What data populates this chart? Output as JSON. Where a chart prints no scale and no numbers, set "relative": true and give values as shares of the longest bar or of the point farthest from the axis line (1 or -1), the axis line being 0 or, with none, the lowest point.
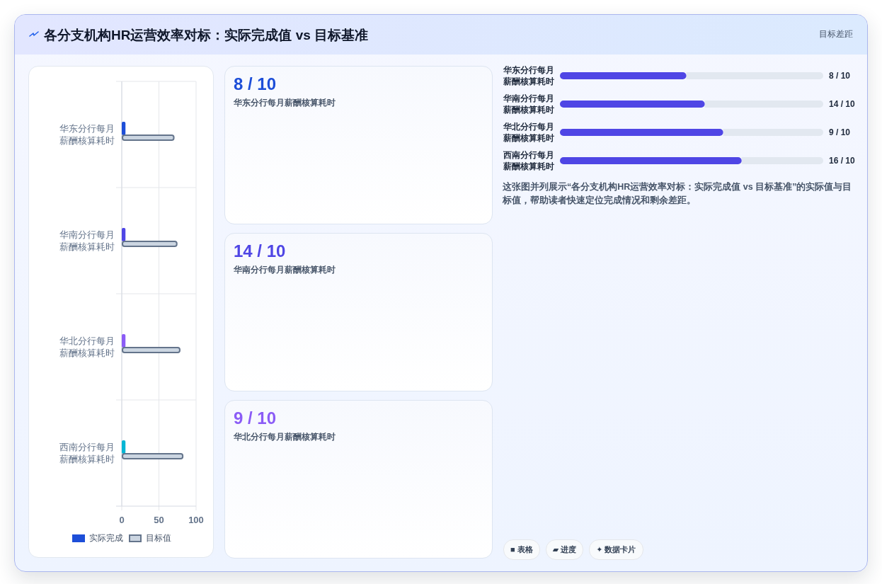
{
  "chart_data": [
    {
      "type": "bar",
      "orientation": "horizontal",
      "title": "各分支机构HR运营效率对标：实际完成值 vs 目标基准",
      "annotations": [
        "目标差距"
      ],
      "categories": [
        "华东分行每月薪酬核算耗时",
        "华南分行每月薪酬核算耗时",
        "华北分行每月薪酬核算耗时",
        "西南分行每月薪酬核算耗时"
      ],
      "series": [
        {
          "name": "实际完成",
          "color": "#1d4ed8",
          "colors": [
            "#1d4ed8",
            "#4f46e5",
            "#8b5cf6",
            "#06b6d4"
          ],
          "values": [
            5,
            5,
            5,
            5
          ]
        },
        {
          "name": "目标值",
          "color": "#cbd5e1",
          "values": [
            71,
            75,
            79,
            83
          ]
        }
      ],
      "xlim": [
        0,
        100
      ],
      "xticks": [
        0,
        50,
        100
      ],
      "grid": true,
      "legend": "bottom"
    },
    {
      "type": "other",
      "categories": [
        "华东分行每月薪酬核算耗时",
        "华南分行每月薪酬核算耗时",
        "华北分行每月薪酬核算耗时"
      ],
      "value_labels": [
        "8 / 10",
        "14 / 10",
        "9 / 10"
      ]
    },
    {
      "type": "bar",
      "orientation": "horizontal",
      "stacked": true,
      "relative": true,
      "categories": [
        "华东分行每月薪酬核算耗时",
        "华南分行每月薪酬核算耗时",
        "华北分行每月薪酬核算耗时",
        "西南分行每月薪酬核算耗时"
      ],
      "series": [
        {
          "color": "#4f46e5",
          "values": [
            0.48,
            0.55,
            0.62,
            0.69
          ]
        },
        {
          "color": "#e2e8f0",
          "values": [
            0.52,
            0.45,
            0.38,
            0.31
          ]
        }
      ],
      "value_labels": [
        "8 / 10",
        "14 / 10",
        "9 / 10",
        "16 / 10"
      ],
      "annotations": [
        "这张图并列展示“各分支机构HR运营效率对标：实际完成值 vs 目标基准”的实际值与目标值，帮助读者快速定位完成情况和剩余差距。",
        "■ 表格",
        "▰ 进度",
        "✦ 数据卡片"
      ]
    }
  ]
}
